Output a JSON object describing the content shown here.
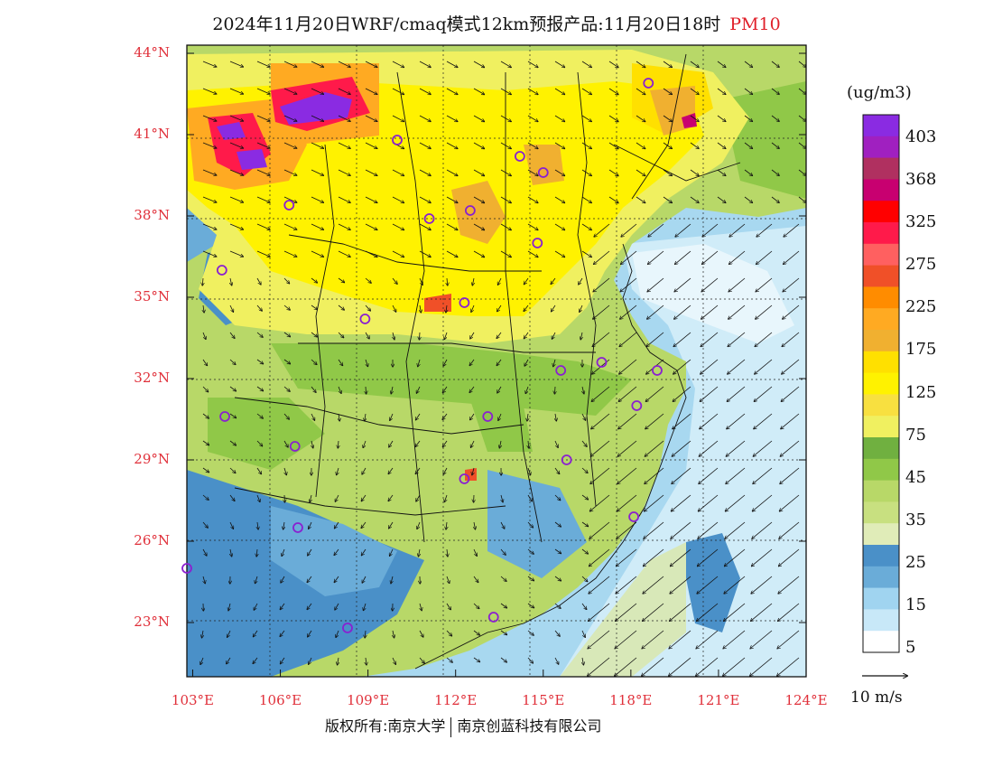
{
  "title": {
    "text": "2024年11月20日WRF/cmaq模式12km预报产品:11月20日18时",
    "variable": "PM10"
  },
  "map": {
    "lat_labels": [
      "44°N",
      "41°N",
      "38°N",
      "35°N",
      "32°N",
      "29°N",
      "26°N",
      "23°N"
    ],
    "lon_labels": [
      "103°E",
      "106°E",
      "109°E",
      "112°E",
      "115°E",
      "118°E",
      "121°E",
      "124°E"
    ],
    "lat_values": [
      44,
      41,
      38,
      35,
      32,
      29,
      26,
      23
    ],
    "lon_values": [
      103,
      106,
      109,
      112,
      115,
      118,
      121,
      124
    ],
    "lat_range": [
      21,
      44.3
    ],
    "lon_range": [
      102.8,
      124
    ],
    "city_markers": [
      [
        118.6,
        42.9
      ],
      [
        110.0,
        40.8
      ],
      [
        114.2,
        40.2
      ],
      [
        115.0,
        39.6
      ],
      [
        106.3,
        38.4
      ],
      [
        111.1,
        37.9
      ],
      [
        112.5,
        38.2
      ],
      [
        114.8,
        37.0
      ],
      [
        104.0,
        36.0
      ],
      [
        112.3,
        34.8
      ],
      [
        108.9,
        34.2
      ],
      [
        115.6,
        32.3
      ],
      [
        117.0,
        32.6
      ],
      [
        118.9,
        32.3
      ],
      [
        104.1,
        30.6
      ],
      [
        113.1,
        30.6
      ],
      [
        118.2,
        31.0
      ],
      [
        106.5,
        29.5
      ],
      [
        115.8,
        29.0
      ],
      [
        112.3,
        28.3
      ],
      [
        106.6,
        26.5
      ],
      [
        118.1,
        26.9
      ],
      [
        102.8,
        25.0
      ],
      [
        108.3,
        22.8
      ],
      [
        113.3,
        23.2
      ]
    ],
    "wind_scale_label": "10 m/s"
  },
  "colorbar": {
    "unit": "(ug/m3)",
    "labels": [
      "403",
      "368",
      "325",
      "275",
      "225",
      "175",
      "125",
      "75",
      "45",
      "35",
      "25",
      "15",
      "5"
    ],
    "colors": [
      "#8a2be2",
      "#a020c0",
      "#b03060",
      "#c80070",
      "#ff0000",
      "#ff1a4a",
      "#ff6060",
      "#f05028",
      "#ff8c00",
      "#ffaa22",
      "#f0b030",
      "#ffe000",
      "#fff200",
      "#f8e040",
      "#f0f060",
      "#70b040",
      "#90c848",
      "#b8d868",
      "#c8e080",
      "#e0ecb8",
      "#4a90c8",
      "#6aacd8",
      "#a0d4f0",
      "#c8e8f8",
      "#ffffff"
    ]
  },
  "copyright": {
    "left": "版权所有:南京大学",
    "right": "南京创蓝科技有限公司"
  }
}
